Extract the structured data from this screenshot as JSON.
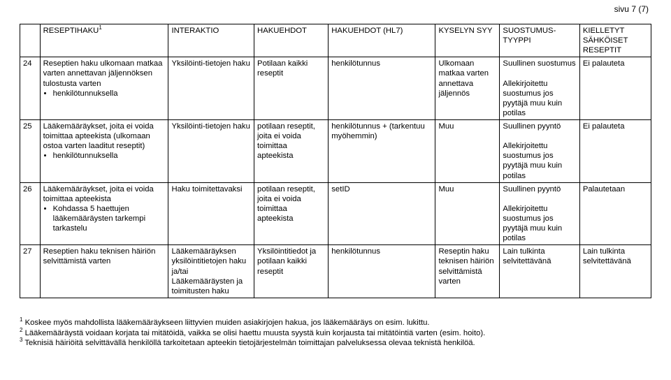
{
  "page_number": "sivu 7 (7)",
  "headers": {
    "num": "",
    "reseptihaku": "RESEPTIHAKU",
    "reseptihaku_sup": "1",
    "interaktio": "INTERAKTIO",
    "hakuehdot": "HAKUEHDOT",
    "hakuehdot_hl7": "HAKUEHDOT (HL7)",
    "kyselyn_syy": "KYSELYN SYY",
    "suostumus": "SUOSTUMUS-TYYPPI",
    "kielletyt": "KIELLETYT SÄHKÖISET RESEPTIT"
  },
  "rows": [
    {
      "num": "24",
      "haku_text": "Reseptien haku ulkomaan matkaa varten annettavan jäljennöksen tulostusta varten",
      "haku_bullets": [
        "henkilötunnuksella"
      ],
      "interaktio": "Yksilöinti-tietojen haku",
      "hakuehdot": "Potilaan kaikki reseptit",
      "hl7": "henkilötunnus",
      "syy": "Ulkomaan matkaa varten annettava jäljennös",
      "suostumus": "Suullinen suostumus\n\nAllekirjoitettu suostumus jos pyytäjä muu kuin potilas",
      "kielletyt": "Ei palauteta"
    },
    {
      "num": "25",
      "haku_text": "Lääkemääräykset, joita ei voida toimittaa apteekista (ulkomaan ostoa varten laaditut reseptit)",
      "haku_bullets": [
        "henkilötunnuksella"
      ],
      "interaktio": "Yksilöinti-tietojen haku",
      "hakuehdot": "potilaan reseptit, joita ei voida toimittaa apteekista",
      "hl7": "henkilötunnus + (tarkentuu myöhemmin)",
      "syy": "Muu",
      "suostumus": "Suullinen pyyntö\n\nAllekirjoitettu suostumus jos pyytäjä muu kuin potilas",
      "kielletyt": "Ei palauteta"
    },
    {
      "num": "26",
      "haku_text": "Lääkemääräykset, joita ei voida toimittaa apteekista",
      "haku_bullets": [
        "Kohdassa 5 haettujen lääkemääräysten tarkempi tarkastelu"
      ],
      "interaktio": "Haku toimitettavaksi",
      "hakuehdot": "potilaan reseptit, joita ei voida toimittaa apteekista",
      "hl7": "setID",
      "syy": "Muu",
      "suostumus": "Suullinen pyyntö\n\nAllekirjoitettu suostumus jos pyytäjä muu kuin potilas",
      "kielletyt": "Palautetaan"
    },
    {
      "num": "27",
      "haku_text": "Reseptien haku teknisen häiriön selvittämistä varten",
      "haku_bullets": [],
      "interaktio": "Lääkemääräyksen yksilöintitietojen haku ja/tai Lääkemääräysten ja toimitusten haku",
      "hakuehdot": "Yksilöintitiedot ja potilaan kaikki reseptit",
      "hl7": "henkilötunnus",
      "syy": "Reseptin haku teknisen häiriön selvittämistä varten",
      "suostumus": "Lain tulkinta selvitettävänä",
      "kielletyt": "Lain tulkinta selvitettävänä"
    }
  ],
  "footnotes": {
    "f1_sup": "1",
    "f1": " Koskee myös mahdollista lääkemääräykseen liittyvien muiden asiakirjojen hakua, jos lääkemääräys on esim. lukittu.",
    "f2_sup": "2",
    "f2": " Lääkemääräystä voidaan korjata tai mitätöidä, vaikka se olisi haettu muusta syystä kuin korjausta tai mitätöintiä varten (esim. hoito).",
    "f3_sup": "3",
    "f3": " Teknisiä häiriöitä selvittävällä henkilöllä tarkoitetaan apteekin tietojärjestelmän toimittajan palveluksessa olevaa teknistä henkilöä."
  }
}
